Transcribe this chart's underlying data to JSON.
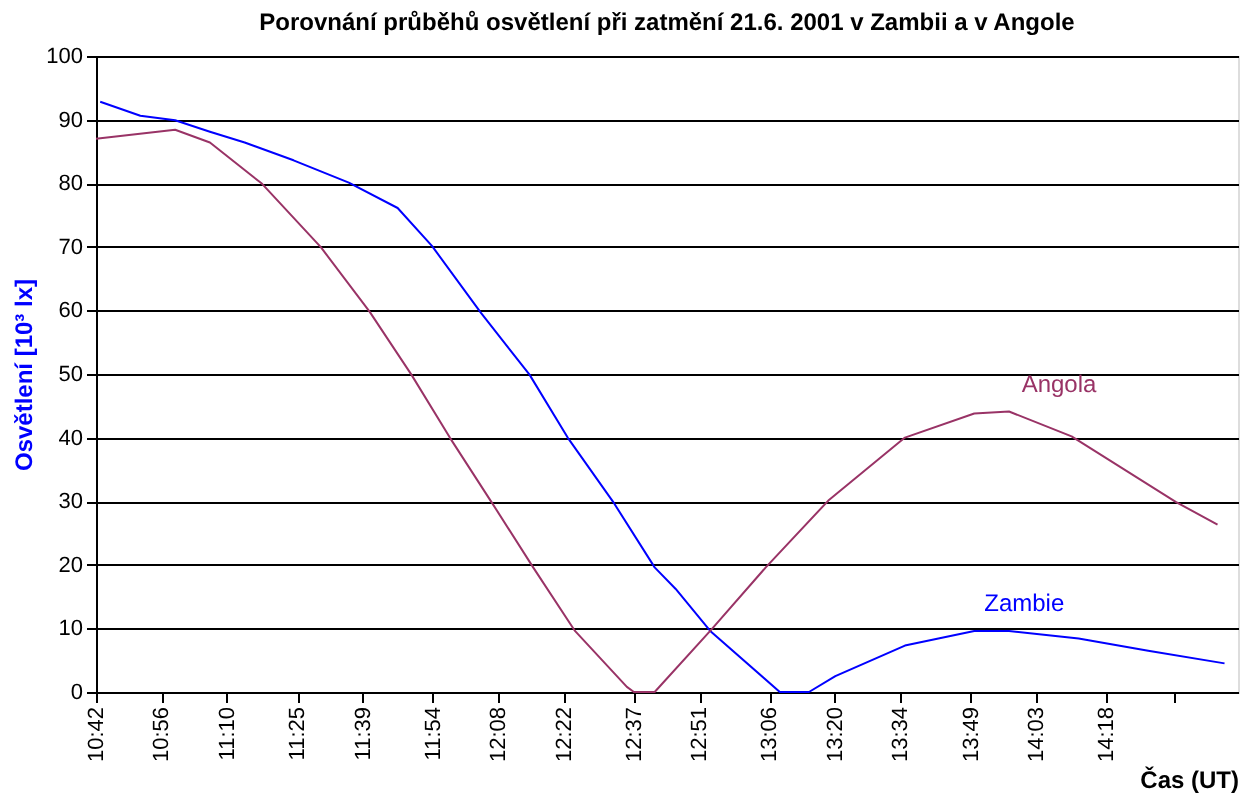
{
  "chart_data": {
    "type": "line",
    "title": "Porovnání průběhů osvětlení při zatmění 21.6. 2001 v Zambii a v Angole",
    "xlabel": "Čas (UT)",
    "ylabel": "Osvětlení [10³ lx]",
    "xlim": [
      10.7,
      14.77
    ],
    "ylim": [
      0,
      100
    ],
    "xticks": [
      {
        "value": 10.7,
        "label": "10:42"
      },
      {
        "value": 10.9333,
        "label": "10:56"
      },
      {
        "value": 11.1667,
        "label": "11:10"
      },
      {
        "value": 11.4167,
        "label": "11:25"
      },
      {
        "value": 11.65,
        "label": "11:39"
      },
      {
        "value": 11.9,
        "label": "11:54"
      },
      {
        "value": 12.1333,
        "label": "12:08"
      },
      {
        "value": 12.3667,
        "label": "12:22"
      },
      {
        "value": 12.6167,
        "label": "12:37"
      },
      {
        "value": 12.85,
        "label": "12:51"
      },
      {
        "value": 13.1,
        "label": "13:06"
      },
      {
        "value": 13.3333,
        "label": "13:20"
      },
      {
        "value": 13.5667,
        "label": "13:34"
      },
      {
        "value": 13.8167,
        "label": "13:49"
      },
      {
        "value": 14.05,
        "label": "14:03"
      },
      {
        "value": 14.3,
        "label": "14:18"
      },
      {
        "value": 14.54,
        "label": null
      }
    ],
    "yticks": [
      0,
      10,
      20,
      30,
      40,
      50,
      60,
      70,
      80,
      90,
      100
    ],
    "grid": "y",
    "marker": "none",
    "line_style": "solid",
    "series": [
      {
        "name": "Zambie",
        "color": "#0000ff",
        "x": [
          10.715,
          10.858,
          10.982,
          11.106,
          11.23,
          11.404,
          11.601,
          11.775,
          11.898,
          12.072,
          12.245,
          12.381,
          12.543,
          12.691,
          12.766,
          12.889,
          13.137,
          13.241,
          13.335,
          13.583,
          13.83,
          13.954,
          14.202,
          14.45,
          14.722
        ],
        "values": [
          92.8,
          90.6,
          89.9,
          88.1,
          86.4,
          83.6,
          80.1,
          76.1,
          70.1,
          59.6,
          49.9,
          40.0,
          29.9,
          19.6,
          16.2,
          9.6,
          0,
          0,
          2.5,
          7.3,
          9.6,
          9.6,
          8.4,
          6.5,
          4.5
        ]
      },
      {
        "name": "Angola",
        "color": "#993366",
        "x": [
          10.7,
          10.982,
          11.106,
          11.292,
          11.502,
          11.675,
          11.824,
          11.961,
          12.109,
          12.258,
          12.407,
          12.592,
          12.617,
          12.691,
          12.889,
          13.087,
          13.31,
          13.583,
          13.83,
          13.954,
          14.177,
          14.548,
          14.697
        ],
        "values": [
          87.0,
          88.4,
          86.4,
          79.9,
          69.9,
          59.8,
          49.9,
          40.0,
          29.9,
          19.6,
          9.6,
          0.8,
          0,
          0,
          9.6,
          19.6,
          30.1,
          40.0,
          43.8,
          44.1,
          40.2,
          29.9,
          26.3
        ]
      }
    ]
  }
}
